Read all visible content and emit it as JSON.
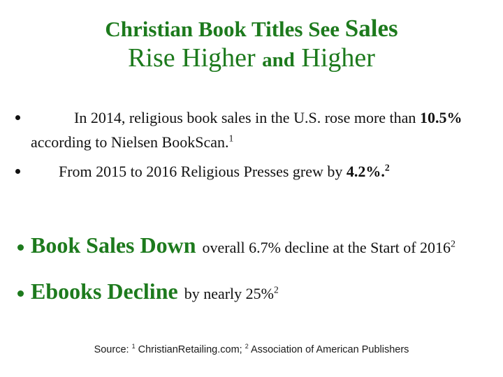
{
  "slide": {
    "title": {
      "line1_main": "Christian Book Titles See ",
      "line1_accent": "Sales",
      "line2_part1": "Rise Higher ",
      "line2_small": "and",
      "line2_part2": " Higher"
    },
    "bullets": [
      {
        "line1_prefix": "In 2014, religious book sales in the U.S. rose more than ",
        "line1_stat": "10.5%",
        "line2_text": "according to Nielsen BookScan.",
        "line2_sup": "1"
      },
      {
        "prefix": "From 2015 to 2016 Religious Presses grew by ",
        "stat": "4.2%.",
        "sup": "2"
      }
    ],
    "highlights": [
      {
        "heading": "Book Sales Down",
        "detail": "overall 6.7% decline at the Start of 2016",
        "sup": "2"
      },
      {
        "heading": "Ebooks Decline",
        "detail": "by nearly 25%",
        "sup": "2"
      }
    ],
    "source": {
      "label": "Source: ",
      "sup1": "1",
      "text1": " ChristianRetailing.com; ",
      "sup2": "2",
      "text2": " Association of American Publishers"
    },
    "colors": {
      "green": "#1d7a1d",
      "text": "#111111",
      "background": "#ffffff"
    }
  }
}
